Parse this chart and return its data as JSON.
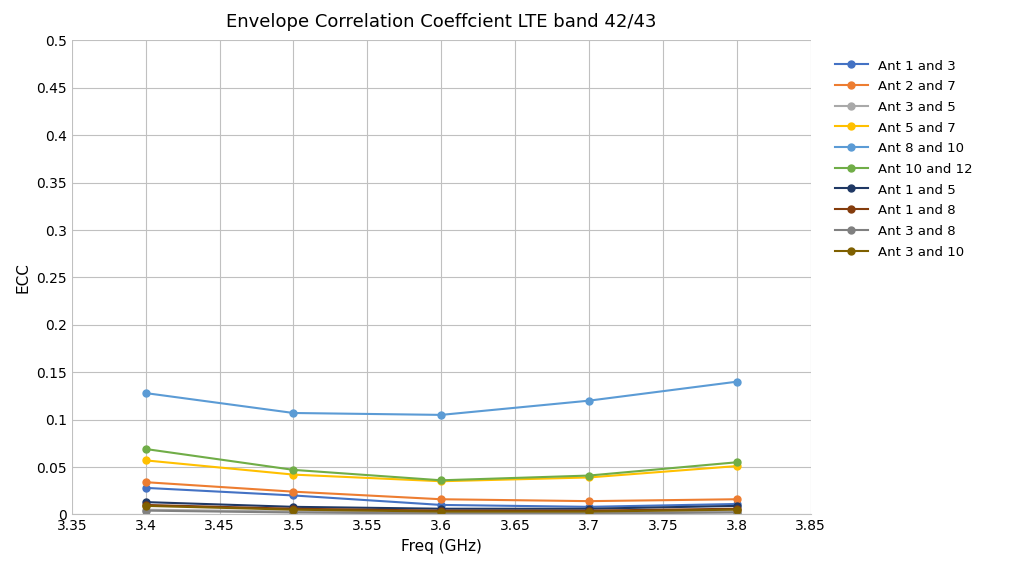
{
  "title": "Envelope Correlation Coeffcient LTE band 42/43",
  "xlabel": "Freq (GHz)",
  "ylabel": "ECC",
  "xlim": [
    3.35,
    3.85
  ],
  "ylim": [
    0,
    0.5
  ],
  "yticks": [
    0,
    0.05,
    0.1,
    0.15,
    0.2,
    0.25,
    0.3,
    0.35,
    0.4,
    0.45,
    0.5
  ],
  "xticks": [
    3.35,
    3.4,
    3.45,
    3.5,
    3.55,
    3.6,
    3.65,
    3.7,
    3.75,
    3.8,
    3.85
  ],
  "x": [
    3.4,
    3.5,
    3.6,
    3.7,
    3.8
  ],
  "series": [
    {
      "label": "Ant 1 and 3",
      "color": "#4472C4",
      "values": [
        0.028,
        0.02,
        0.01,
        0.008,
        0.011
      ]
    },
    {
      "label": "Ant 2 and 7",
      "color": "#ED7D31",
      "values": [
        0.034,
        0.024,
        0.016,
        0.014,
        0.016
      ]
    },
    {
      "label": "Ant 3 and 5",
      "color": "#A9A9A9",
      "values": [
        0.005,
        0.003,
        0.002,
        0.002,
        0.003
      ]
    },
    {
      "label": "Ant 5 and 7",
      "color": "#FFC000",
      "values": [
        0.057,
        0.042,
        0.035,
        0.039,
        0.051
      ]
    },
    {
      "label": "Ant 8 and 10",
      "color": "#5B9BD5",
      "values": [
        0.128,
        0.107,
        0.105,
        0.12,
        0.14
      ]
    },
    {
      "label": "Ant 10 and 12",
      "color": "#70AD47",
      "values": [
        0.069,
        0.047,
        0.036,
        0.041,
        0.055
      ]
    },
    {
      "label": "Ant 1 and 5",
      "color": "#1F3864",
      "values": [
        0.013,
        0.008,
        0.006,
        0.006,
        0.009
      ]
    },
    {
      "label": "Ant 1 and 8",
      "color": "#843C0C",
      "values": [
        0.01,
        0.006,
        0.004,
        0.004,
        0.006
      ]
    },
    {
      "label": "Ant 3 and 8",
      "color": "#808080",
      "values": [
        0.004,
        0.002,
        0.001,
        0.001,
        0.002
      ]
    },
    {
      "label": "Ant 3 and 10",
      "color": "#7F6000",
      "values": [
        0.009,
        0.005,
        0.003,
        0.003,
        0.005
      ]
    }
  ],
  "background_color": "#FFFFFF",
  "grid_color": "#C0C0C0",
  "title_fontsize": 13,
  "label_fontsize": 11,
  "tick_fontsize": 10,
  "legend_fontsize": 9.5
}
